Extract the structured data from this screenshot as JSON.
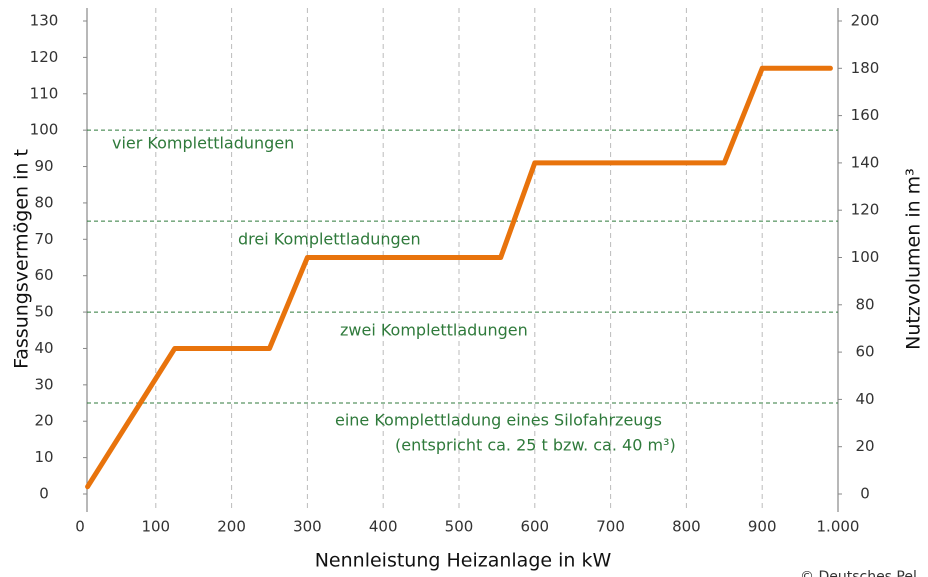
{
  "chart_data": {
    "type": "line",
    "x_label": "Nennleistung Heizanlage in kW",
    "y_label": "Fassungsvermögen in t",
    "y2_label": "Nutzvolumen in m³",
    "series": [
      {
        "name": "Fassungsvermögen",
        "color": "#e8730c",
        "x": [
          10,
          125,
          250,
          300,
          555,
          600,
          850,
          900,
          990
        ],
        "values": [
          2,
          40,
          40,
          65,
          65,
          91,
          91,
          117,
          117
        ]
      }
    ],
    "xlim": [
      0,
      1000
    ],
    "xticks": [
      0,
      100,
      200,
      300,
      400,
      500,
      600,
      700,
      800,
      900,
      {
        "value": 1000,
        "label": "1.000"
      }
    ],
    "ylim": [
      0,
      130
    ],
    "yticks": [
      0,
      10,
      20,
      30,
      40,
      50,
      60,
      70,
      80,
      90,
      100,
      110,
      120,
      130
    ],
    "y2lim": [
      0,
      200
    ],
    "y2ticks": [
      0,
      20,
      40,
      60,
      80,
      100,
      120,
      140,
      160,
      180,
      200
    ],
    "reference_lines": [
      25,
      50,
      75,
      100
    ],
    "reference_color": "#2f7a3b",
    "annotations": [
      "vier Komplettladungen",
      "drei Komplettladungen",
      "zwei Komplettladungen",
      "eine Komplettladung eines Silofahrzeugs",
      "(entspricht ca. 25 t bzw. ca. 40 m³)"
    ],
    "credit": "© Deutsches Pel",
    "grid": true
  }
}
